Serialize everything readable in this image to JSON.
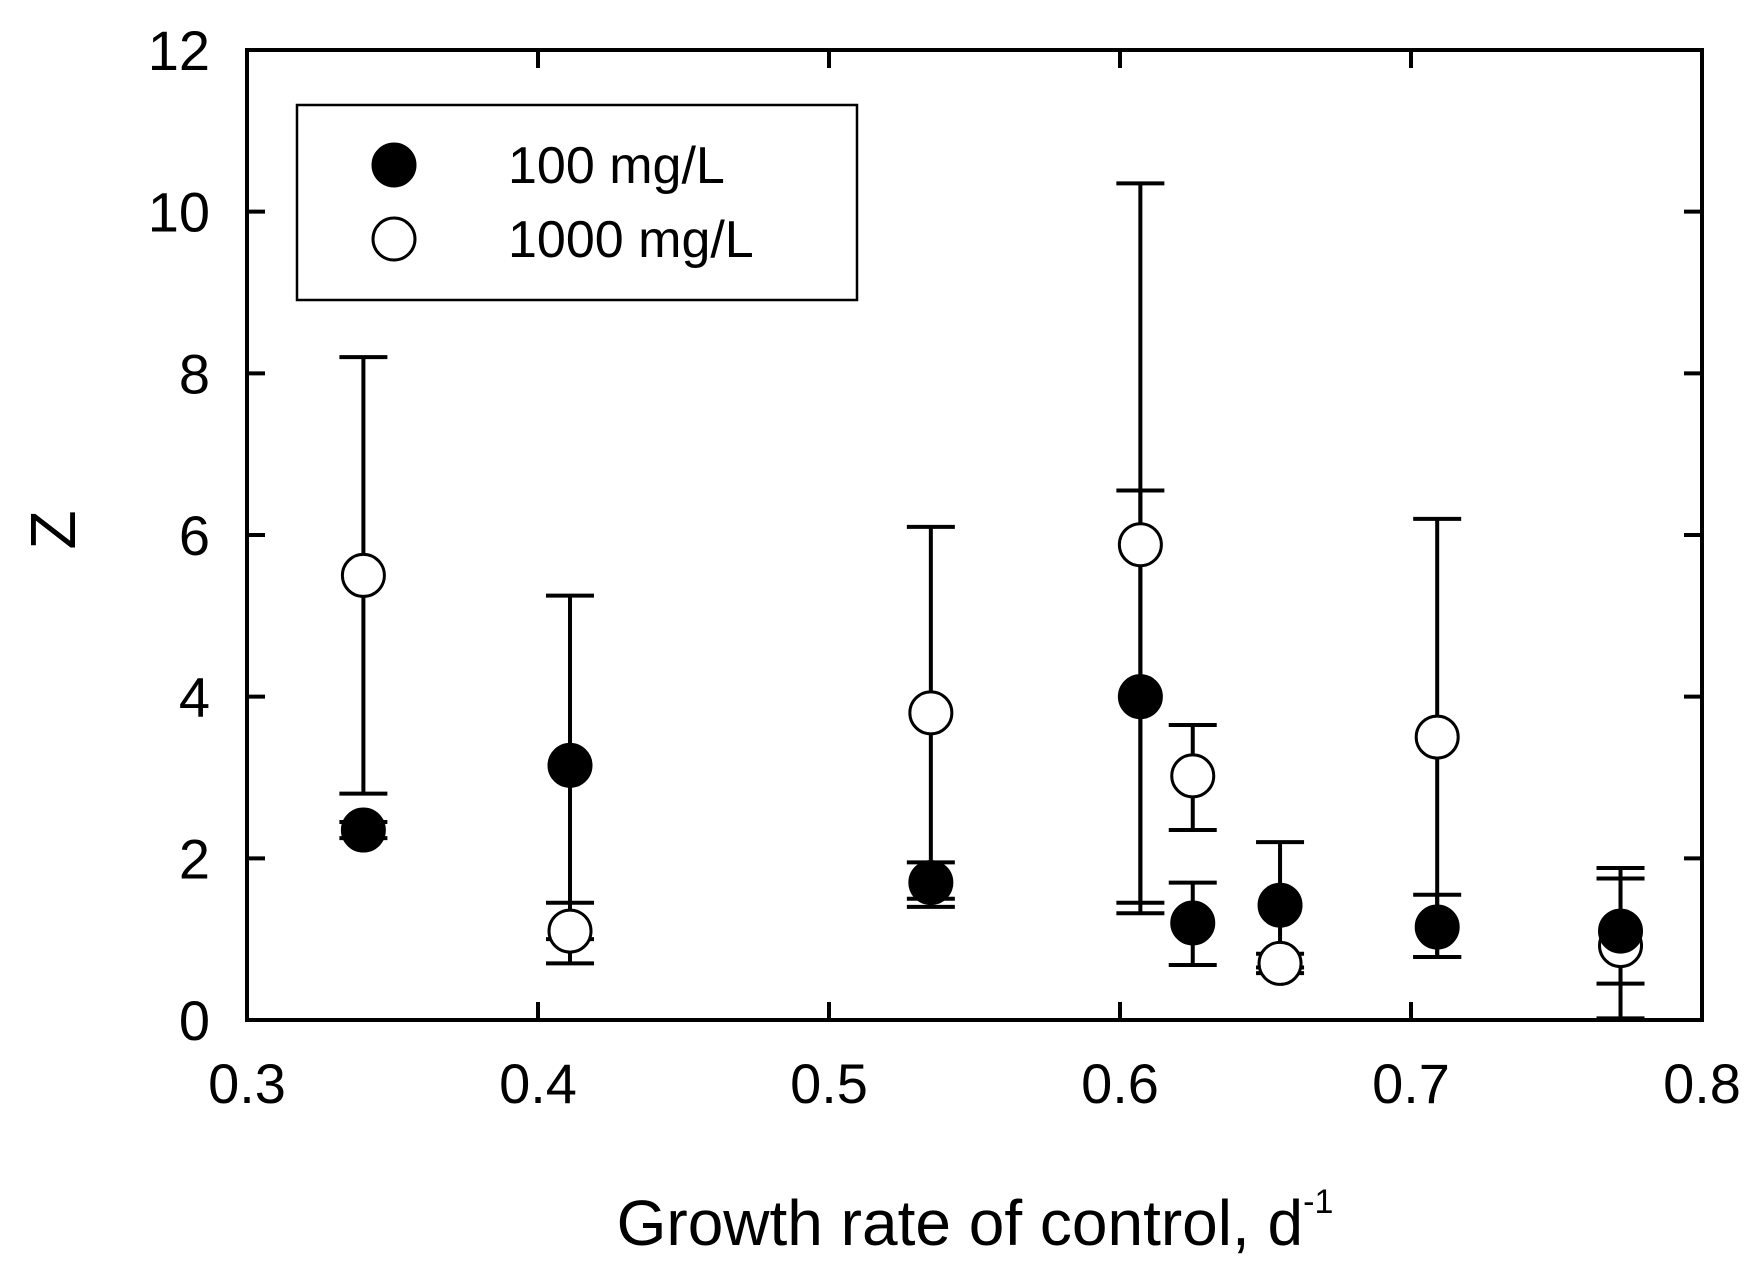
{
  "chart_data": {
    "type": "scatter",
    "title": "",
    "xlabel": "Growth rate of control, d",
    "xlabel_superscript": "-1",
    "ylabel": "Z",
    "xlim": [
      0.3,
      0.8
    ],
    "ylim": [
      0,
      12
    ],
    "xticks": [
      0.3,
      0.4,
      0.5,
      0.6,
      0.7,
      0.8
    ],
    "yticks": [
      0,
      2,
      4,
      6,
      8,
      10,
      12
    ],
    "xtick_labels": [
      "0.3",
      "0.4",
      "0.5",
      "0.6",
      "0.7",
      "0.8"
    ],
    "ytick_labels": [
      "0",
      "2",
      "4",
      "6",
      "8",
      "10",
      "12"
    ],
    "grid": false,
    "legend_position": "top-left",
    "series": [
      {
        "name": "100 mg/L",
        "marker": "filled-circle",
        "color": "#000000",
        "points": [
          {
            "x": 0.34,
            "y": 2.35,
            "lo": 2.25,
            "hi": 2.45
          },
          {
            "x": 0.411,
            "y": 3.15,
            "lo": 1.0,
            "hi": 5.25
          },
          {
            "x": 0.535,
            "y": 1.7,
            "lo": 1.4,
            "hi": 1.95
          },
          {
            "x": 0.607,
            "y": 4.0,
            "lo": 1.45,
            "hi": 6.55
          },
          {
            "x": 0.625,
            "y": 1.2,
            "lo": 0.68,
            "hi": 1.7
          },
          {
            "x": 0.655,
            "y": 1.42,
            "lo": 0.65,
            "hi": 2.2
          },
          {
            "x": 0.709,
            "y": 1.15,
            "lo": 0.78,
            "hi": 1.55
          },
          {
            "x": 0.772,
            "y": 1.1,
            "lo": 0.45,
            "hi": 1.75
          }
        ]
      },
      {
        "name": "1000 mg/L",
        "marker": "open-circle",
        "color": "#000000",
        "points": [
          {
            "x": 0.34,
            "y": 5.5,
            "lo": 2.8,
            "hi": 8.2
          },
          {
            "x": 0.411,
            "y": 1.1,
            "lo": 0.7,
            "hi": 1.45
          },
          {
            "x": 0.535,
            "y": 3.8,
            "lo": 1.5,
            "hi": 6.1
          },
          {
            "x": 0.607,
            "y": 5.88,
            "lo": 1.32,
            "hi": 10.35
          },
          {
            "x": 0.625,
            "y": 3.02,
            "lo": 2.35,
            "hi": 3.65
          },
          {
            "x": 0.655,
            "y": 0.7,
            "lo": 0.58,
            "hi": 0.82
          },
          {
            "x": 0.709,
            "y": 3.5,
            "lo": 0.78,
            "hi": 6.2
          },
          {
            "x": 0.772,
            "y": 0.92,
            "lo": 0.02,
            "hi": 1.88
          }
        ]
      }
    ]
  }
}
